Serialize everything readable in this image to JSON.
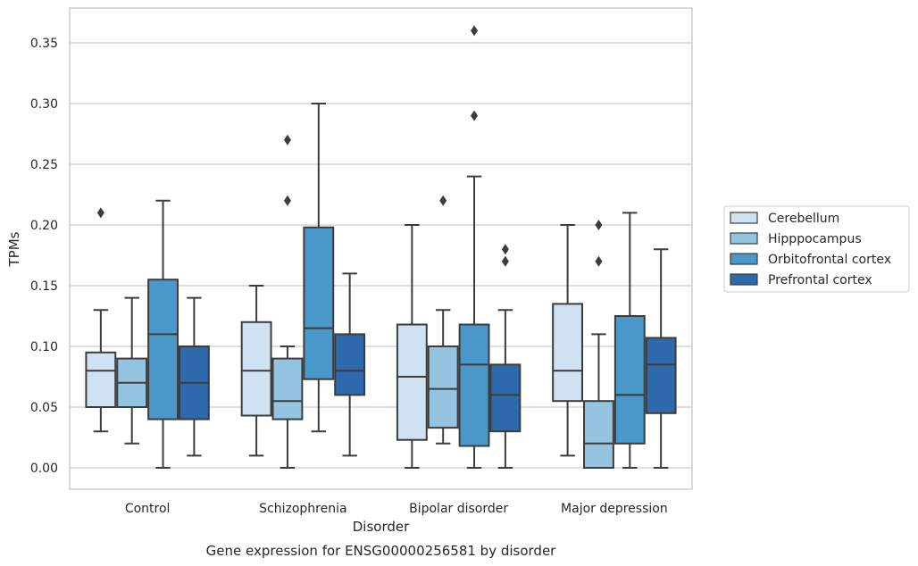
{
  "chart_data": {
    "type": "box",
    "title": "",
    "caption": "Gene expression for ENSG00000256581 by disorder",
    "xlabel": "Disorder",
    "ylabel": "TPMs",
    "ylim": [
      -0.018,
      0.378
    ],
    "yticks": [
      0.0,
      0.05,
      0.1,
      0.15,
      0.2,
      0.25,
      0.3,
      0.35
    ],
    "ytick_labels": [
      "0.00",
      "0.05",
      "0.10",
      "0.15",
      "0.20",
      "0.25",
      "0.30",
      "0.35"
    ],
    "grid": true,
    "legend_position": "right",
    "categories": [
      "Control",
      "Schizophrenia",
      "Bipolar disorder",
      "Major depression"
    ],
    "series": [
      {
        "name": "Cerebellum",
        "color": "#d0e1f2",
        "boxes": [
          {
            "whisker_low": 0.03,
            "q1": 0.05,
            "median": 0.08,
            "q3": 0.095,
            "whisker_high": 0.13,
            "outliers": [
              0.21
            ]
          },
          {
            "whisker_low": 0.01,
            "q1": 0.043,
            "median": 0.08,
            "q3": 0.12,
            "whisker_high": 0.15,
            "outliers": []
          },
          {
            "whisker_low": 0.0,
            "q1": 0.023,
            "median": 0.075,
            "q3": 0.118,
            "whisker_high": 0.2,
            "outliers": []
          },
          {
            "whisker_low": 0.01,
            "q1": 0.055,
            "median": 0.08,
            "q3": 0.135,
            "whisker_high": 0.2,
            "outliers": []
          }
        ]
      },
      {
        "name": "Hipppocampus",
        "color": "#94c4df",
        "boxes": [
          {
            "whisker_low": 0.02,
            "q1": 0.05,
            "median": 0.07,
            "q3": 0.09,
            "whisker_high": 0.14,
            "outliers": []
          },
          {
            "whisker_low": 0.0,
            "q1": 0.04,
            "median": 0.055,
            "q3": 0.09,
            "whisker_high": 0.1,
            "outliers": [
              0.22,
              0.27
            ]
          },
          {
            "whisker_low": 0.02,
            "q1": 0.033,
            "median": 0.065,
            "q3": 0.1,
            "whisker_high": 0.13,
            "outliers": [
              0.22
            ]
          },
          {
            "whisker_low": 0.0,
            "q1": 0.0,
            "median": 0.02,
            "q3": 0.055,
            "whisker_high": 0.11,
            "outliers": [
              0.17,
              0.2
            ]
          }
        ]
      },
      {
        "name": "Orbitofrontal cortex",
        "color": "#4a98c9",
        "boxes": [
          {
            "whisker_low": 0.0,
            "q1": 0.04,
            "median": 0.11,
            "q3": 0.155,
            "whisker_high": 0.22,
            "outliers": []
          },
          {
            "whisker_low": 0.03,
            "q1": 0.073,
            "median": 0.115,
            "q3": 0.198,
            "whisker_high": 0.3,
            "outliers": []
          },
          {
            "whisker_low": 0.0,
            "q1": 0.018,
            "median": 0.085,
            "q3": 0.118,
            "whisker_high": 0.24,
            "outliers": [
              0.29,
              0.36
            ]
          },
          {
            "whisker_low": 0.0,
            "q1": 0.02,
            "median": 0.06,
            "q3": 0.125,
            "whisker_high": 0.21,
            "outliers": []
          }
        ]
      },
      {
        "name": "Prefrontal cortex",
        "color": "#2e69ab",
        "boxes": [
          {
            "whisker_low": 0.01,
            "q1": 0.04,
            "median": 0.07,
            "q3": 0.1,
            "whisker_high": 0.14,
            "outliers": []
          },
          {
            "whisker_low": 0.01,
            "q1": 0.06,
            "median": 0.08,
            "q3": 0.11,
            "whisker_high": 0.16,
            "outliers": []
          },
          {
            "whisker_low": 0.0,
            "q1": 0.03,
            "median": 0.06,
            "q3": 0.085,
            "whisker_high": 0.13,
            "outliers": [
              0.17,
              0.18
            ]
          },
          {
            "whisker_low": 0.0,
            "q1": 0.045,
            "median": 0.085,
            "q3": 0.107,
            "whisker_high": 0.18,
            "outliers": []
          }
        ]
      }
    ]
  }
}
